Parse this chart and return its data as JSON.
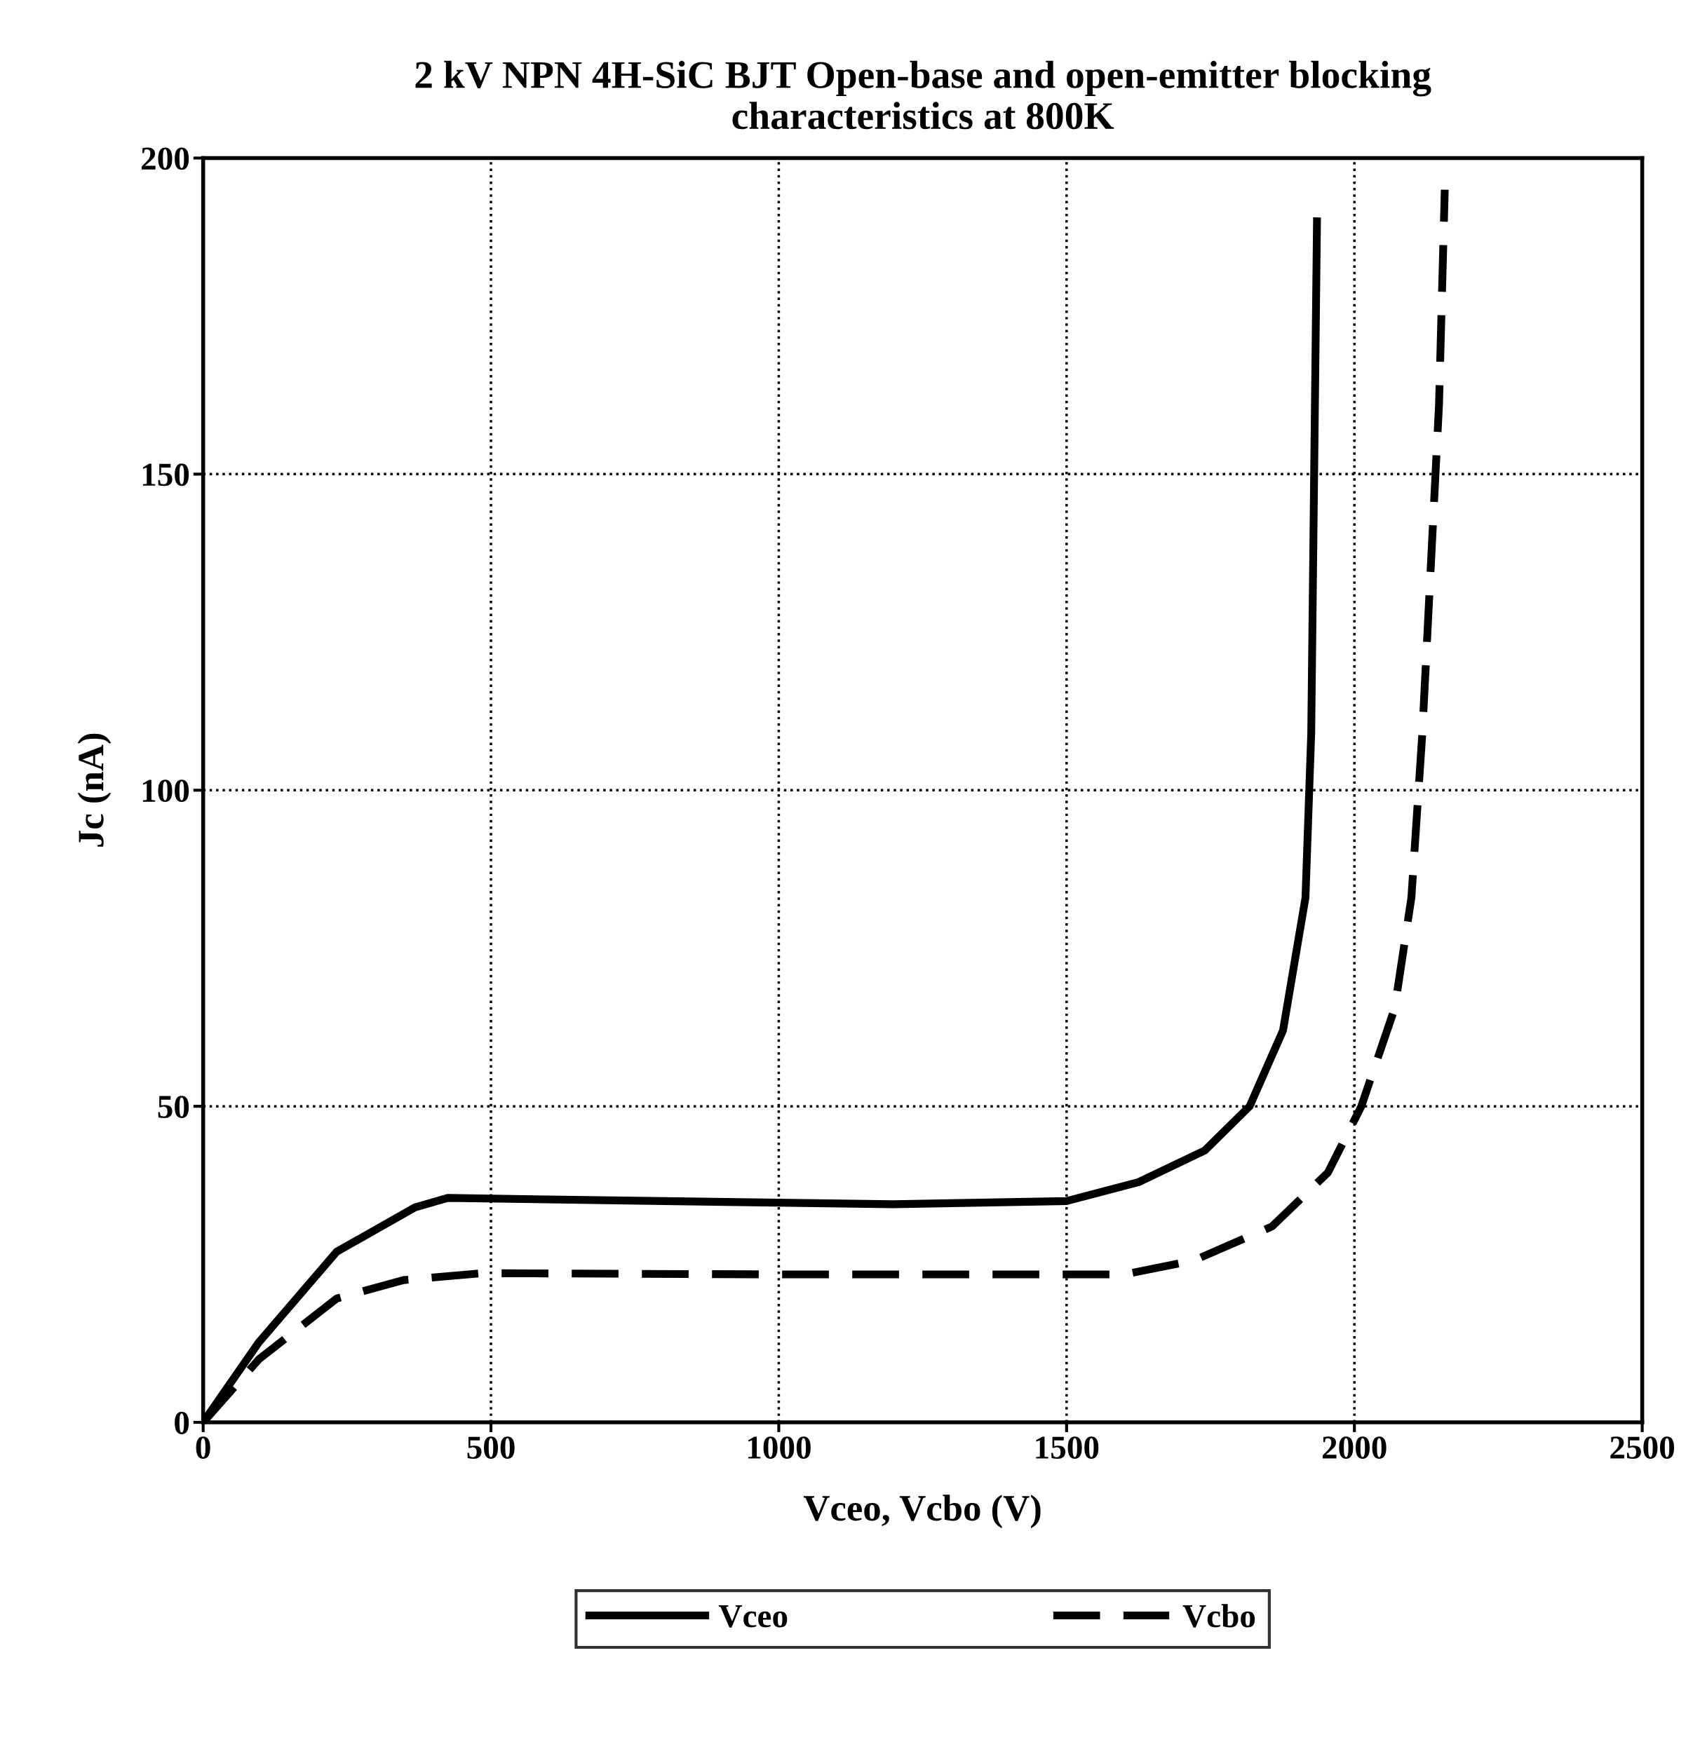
{
  "chart_data": {
    "type": "line",
    "title": "2 kV NPN 4H-SiC BJT Open-base and open-emitter blocking\ncharacteristics at 800K",
    "xlabel": "Vceo, Vcbo (V)",
    "ylabel": "Jc (nA)",
    "xlim": [
      0,
      2500
    ],
    "xticks": [
      0,
      500,
      1000,
      1500,
      2000,
      2500
    ],
    "ylim": [
      0,
      200
    ],
    "yticks": [
      0,
      50,
      100,
      150,
      200
    ],
    "grid": true,
    "legend": "bottom",
    "series": [
      {
        "name": "Vceo",
        "color": "#000000",
        "line_style": "solid",
        "x": [
          0,
          97,
          232,
          368,
          425,
          800,
          1200,
          1500,
          1625,
          1740,
          1818,
          1876,
          1915,
          1925,
          1935
        ],
        "values": [
          0,
          12.7,
          27,
          34,
          35.5,
          35,
          34.5,
          35,
          38,
          43,
          50,
          62,
          83,
          109,
          190
        ]
      },
      {
        "name": "Vcbo",
        "color": "#000000",
        "line_style": "dashed",
        "x": [
          0,
          97,
          232,
          348,
          484,
          1000,
          1600,
          1721,
          1857,
          1954,
          2012,
          2070,
          2099,
          2118,
          2147,
          2157
        ],
        "values": [
          0,
          10,
          19.6,
          22.5,
          23.6,
          23.4,
          23.4,
          25.6,
          31,
          39.5,
          50,
          65.5,
          83,
          109,
          161,
          195
        ]
      }
    ]
  }
}
